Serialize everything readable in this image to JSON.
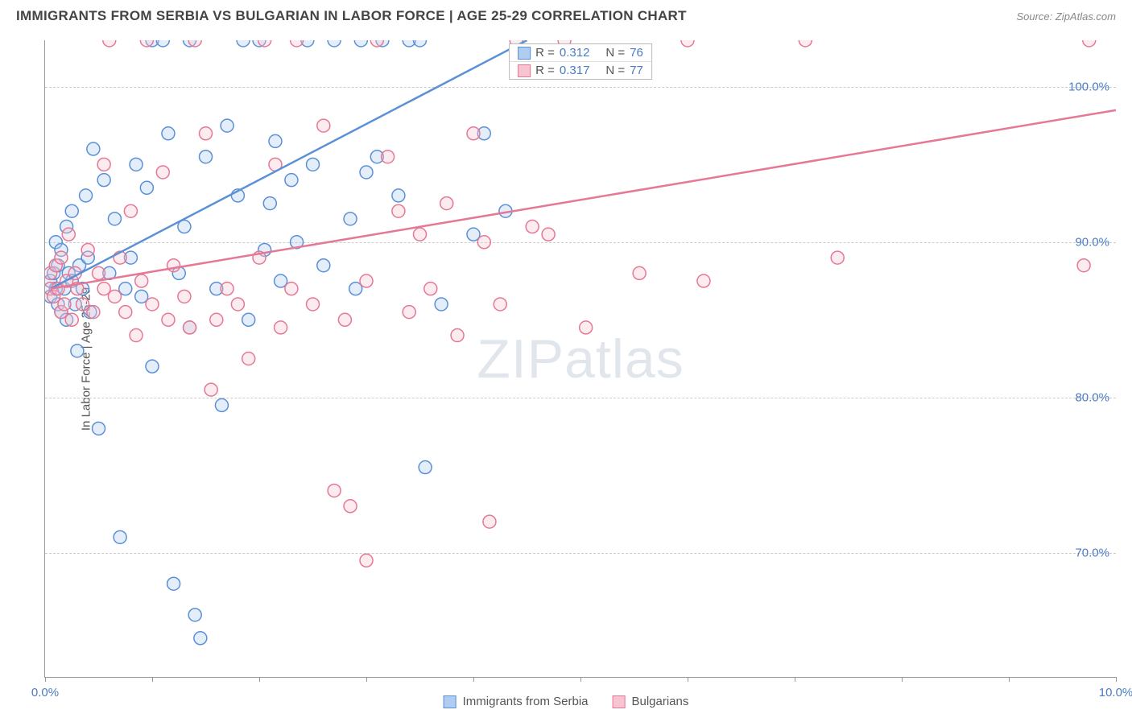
{
  "header": {
    "title": "IMMIGRANTS FROM SERBIA VS BULGARIAN IN LABOR FORCE | AGE 25-29 CORRELATION CHART",
    "source_prefix": "Source: ",
    "source": "ZipAtlas.com"
  },
  "watermark": {
    "part1": "ZIP",
    "part2": "atlas"
  },
  "chart": {
    "type": "scatter",
    "y_axis_label": "In Labor Force | Age 25-29",
    "xlim": [
      0,
      10
    ],
    "ylim": [
      62,
      103
    ],
    "x_ticks": [
      0,
      1,
      2,
      3,
      4,
      5,
      6,
      7,
      8,
      9,
      10
    ],
    "x_tick_labels": {
      "0": "0.0%",
      "10": "10.0%"
    },
    "y_grid": [
      70,
      80,
      90,
      100
    ],
    "y_tick_labels": {
      "70": "70.0%",
      "80": "80.0%",
      "90": "90.0%",
      "100": "100.0%"
    },
    "background_color": "#ffffff",
    "grid_color": "#cccccc",
    "axis_color": "#999999",
    "label_color": "#4a7bc4",
    "marker_radius": 8,
    "marker_stroke_width": 1.5,
    "marker_fill_opacity": 0.35,
    "line_width": 2.5,
    "series": [
      {
        "id": "serbia",
        "label": "Immigrants from Serbia",
        "color_stroke": "#5b8fd6",
        "color_fill": "#aecdf1",
        "R": "0.312",
        "N": "76",
        "trend": {
          "x1": 0.05,
          "y1": 87.0,
          "x2": 4.5,
          "y2": 103.0
        },
        "points": [
          [
            0.05,
            86.5
          ],
          [
            0.05,
            87.5
          ],
          [
            0.08,
            88.0
          ],
          [
            0.1,
            87.0
          ],
          [
            0.1,
            90.0
          ],
          [
            0.12,
            86.0
          ],
          [
            0.12,
            88.5
          ],
          [
            0.15,
            89.5
          ],
          [
            0.15,
            85.5
          ],
          [
            0.18,
            87.0
          ],
          [
            0.2,
            91.0
          ],
          [
            0.2,
            85.0
          ],
          [
            0.22,
            88.0
          ],
          [
            0.25,
            87.5
          ],
          [
            0.25,
            92.0
          ],
          [
            0.28,
            86.0
          ],
          [
            0.3,
            83.0
          ],
          [
            0.32,
            88.5
          ],
          [
            0.35,
            87.0
          ],
          [
            0.38,
            93.0
          ],
          [
            0.4,
            89.0
          ],
          [
            0.42,
            85.5
          ],
          [
            0.45,
            96.0
          ],
          [
            0.5,
            78.0
          ],
          [
            0.55,
            94.0
          ],
          [
            0.6,
            88.0
          ],
          [
            0.65,
            91.5
          ],
          [
            0.7,
            71.0
          ],
          [
            0.75,
            87.0
          ],
          [
            0.8,
            89.0
          ],
          [
            0.85,
            95.0
          ],
          [
            0.9,
            86.5
          ],
          [
            0.95,
            93.5
          ],
          [
            1.0,
            103.0
          ],
          [
            1.0,
            82.0
          ],
          [
            1.1,
            103.0
          ],
          [
            1.15,
            97.0
          ],
          [
            1.2,
            68.0
          ],
          [
            1.25,
            88.0
          ],
          [
            1.3,
            91.0
          ],
          [
            1.35,
            103.0
          ],
          [
            1.35,
            84.5
          ],
          [
            1.4,
            66.0
          ],
          [
            1.45,
            64.5
          ],
          [
            1.5,
            95.5
          ],
          [
            1.6,
            87.0
          ],
          [
            1.65,
            79.5
          ],
          [
            1.7,
            97.5
          ],
          [
            1.8,
            93.0
          ],
          [
            1.85,
            103.0
          ],
          [
            1.9,
            85.0
          ],
          [
            2.0,
            103.0
          ],
          [
            2.05,
            89.5
          ],
          [
            2.1,
            92.5
          ],
          [
            2.15,
            96.5
          ],
          [
            2.2,
            87.5
          ],
          [
            2.3,
            94.0
          ],
          [
            2.35,
            90.0
          ],
          [
            2.45,
            103.0
          ],
          [
            2.5,
            95.0
          ],
          [
            2.6,
            88.5
          ],
          [
            2.7,
            103.0
          ],
          [
            2.85,
            91.5
          ],
          [
            2.9,
            87.0
          ],
          [
            2.95,
            103.0
          ],
          [
            3.0,
            94.5
          ],
          [
            3.1,
            95.5
          ],
          [
            3.15,
            103.0
          ],
          [
            3.3,
            93.0
          ],
          [
            3.4,
            103.0
          ],
          [
            3.5,
            103.0
          ],
          [
            3.55,
            75.5
          ],
          [
            3.7,
            86.0
          ],
          [
            4.0,
            90.5
          ],
          [
            4.1,
            97.0
          ],
          [
            4.3,
            92.0
          ]
        ]
      },
      {
        "id": "bulgarians",
        "label": "Bulgarians",
        "color_stroke": "#e57894",
        "color_fill": "#f7c5d1",
        "R": "0.317",
        "N": "77",
        "trend": {
          "x1": 0.05,
          "y1": 87.0,
          "x2": 10.0,
          "y2": 98.5
        },
        "points": [
          [
            0.05,
            87.0
          ],
          [
            0.05,
            88.0
          ],
          [
            0.08,
            86.5
          ],
          [
            0.1,
            88.5
          ],
          [
            0.12,
            87.0
          ],
          [
            0.15,
            85.5
          ],
          [
            0.15,
            89.0
          ],
          [
            0.18,
            86.0
          ],
          [
            0.2,
            87.5
          ],
          [
            0.22,
            90.5
          ],
          [
            0.25,
            85.0
          ],
          [
            0.28,
            88.0
          ],
          [
            0.3,
            87.0
          ],
          [
            0.35,
            86.0
          ],
          [
            0.4,
            89.5
          ],
          [
            0.45,
            85.5
          ],
          [
            0.5,
            88.0
          ],
          [
            0.55,
            95.0
          ],
          [
            0.55,
            87.0
          ],
          [
            0.6,
            103.0
          ],
          [
            0.65,
            86.5
          ],
          [
            0.7,
            89.0
          ],
          [
            0.75,
            85.5
          ],
          [
            0.8,
            92.0
          ],
          [
            0.85,
            84.0
          ],
          [
            0.9,
            87.5
          ],
          [
            0.95,
            103.0
          ],
          [
            1.0,
            86.0
          ],
          [
            1.1,
            94.5
          ],
          [
            1.15,
            85.0
          ],
          [
            1.2,
            88.5
          ],
          [
            1.3,
            86.5
          ],
          [
            1.35,
            84.5
          ],
          [
            1.4,
            103.0
          ],
          [
            1.5,
            97.0
          ],
          [
            1.55,
            80.5
          ],
          [
            1.6,
            85.0
          ],
          [
            1.7,
            87.0
          ],
          [
            1.8,
            86.0
          ],
          [
            1.9,
            82.5
          ],
          [
            2.0,
            89.0
          ],
          [
            2.05,
            103.0
          ],
          [
            2.15,
            95.0
          ],
          [
            2.2,
            84.5
          ],
          [
            2.3,
            87.0
          ],
          [
            2.35,
            103.0
          ],
          [
            2.5,
            86.0
          ],
          [
            2.6,
            97.5
          ],
          [
            2.7,
            74.0
          ],
          [
            2.8,
            85.0
          ],
          [
            2.85,
            73.0
          ],
          [
            3.0,
            87.5
          ],
          [
            3.0,
            69.5
          ],
          [
            3.1,
            103.0
          ],
          [
            3.2,
            95.5
          ],
          [
            3.3,
            92.0
          ],
          [
            3.4,
            85.5
          ],
          [
            3.5,
            90.5
          ],
          [
            3.6,
            87.0
          ],
          [
            3.75,
            92.5
          ],
          [
            3.85,
            84.0
          ],
          [
            4.0,
            97.0
          ],
          [
            4.1,
            90.0
          ],
          [
            4.15,
            72.0
          ],
          [
            4.25,
            86.0
          ],
          [
            4.4,
            103.0
          ],
          [
            4.55,
            91.0
          ],
          [
            4.7,
            90.5
          ],
          [
            4.85,
            103.0
          ],
          [
            5.05,
            84.5
          ],
          [
            5.55,
            88.0
          ],
          [
            6.0,
            103.0
          ],
          [
            6.15,
            87.5
          ],
          [
            7.1,
            103.0
          ],
          [
            7.4,
            89.0
          ],
          [
            9.7,
            88.5
          ],
          [
            9.75,
            103.0
          ]
        ]
      }
    ]
  },
  "legend_top": {
    "R_label": "R = ",
    "N_label": "N = "
  },
  "legend_bottom": {
    "serbia": "Immigrants from Serbia",
    "bulgarians": "Bulgarians"
  }
}
